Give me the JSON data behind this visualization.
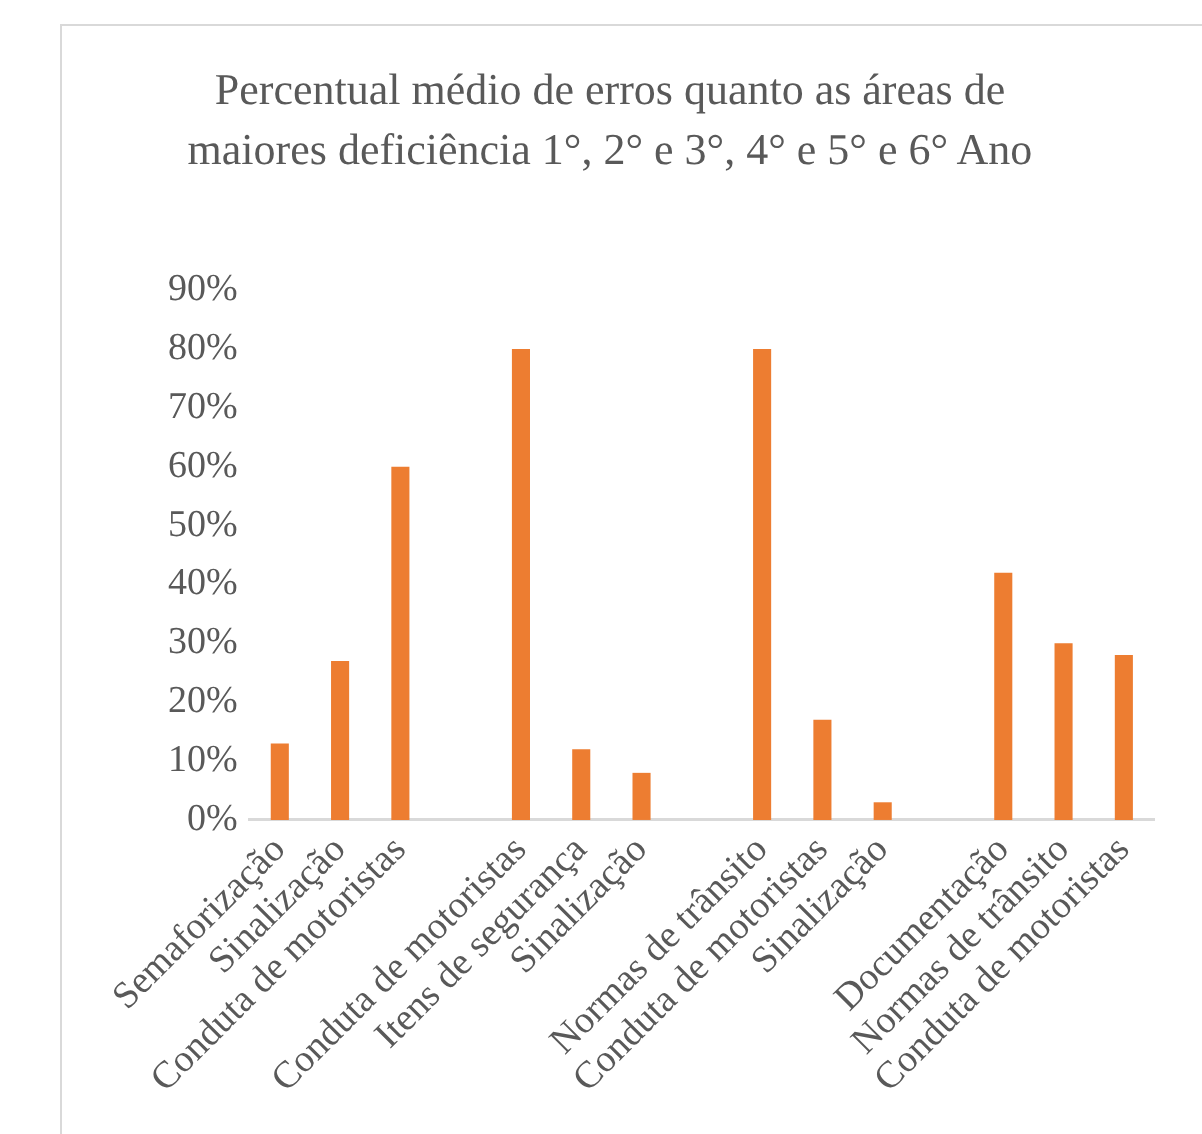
{
  "chart_data": {
    "type": "bar",
    "title": "Percentual médio de erros quanto as áreas de maiores deficiência 1°,  2° e 3°, 4° e 5° e 6° Ano",
    "categories": [
      "Semaforização",
      "Sinalização",
      "Conduta de motoristas",
      null,
      "Conduta de motoristas",
      "Itens de segurança",
      "Sinalização",
      null,
      "Normas de trânsito",
      "Conduta de motoristas",
      "Sinalização",
      null,
      "Documentação",
      "Normas de trânsito",
      "Conduta de motoristas"
    ],
    "values": [
      13,
      27,
      60,
      null,
      80,
      12,
      8,
      null,
      80,
      17,
      3,
      null,
      42,
      30,
      28
    ],
    "color": "#ed7d31",
    "ylim": [
      0,
      90
    ],
    "yticks": [
      {
        "value": 0,
        "label": "0%"
      },
      {
        "value": 10,
        "label": "10%"
      },
      {
        "value": 20,
        "label": "20%"
      },
      {
        "value": 30,
        "label": "30%"
      },
      {
        "value": 40,
        "label": "40%"
      },
      {
        "value": 50,
        "label": "50%"
      },
      {
        "value": 60,
        "label": "60%"
      },
      {
        "value": 70,
        "label": "70%"
      },
      {
        "value": 80,
        "label": "80%"
      },
      {
        "value": 90,
        "label": "90%"
      }
    ],
    "grid": false,
    "legend": false
  }
}
